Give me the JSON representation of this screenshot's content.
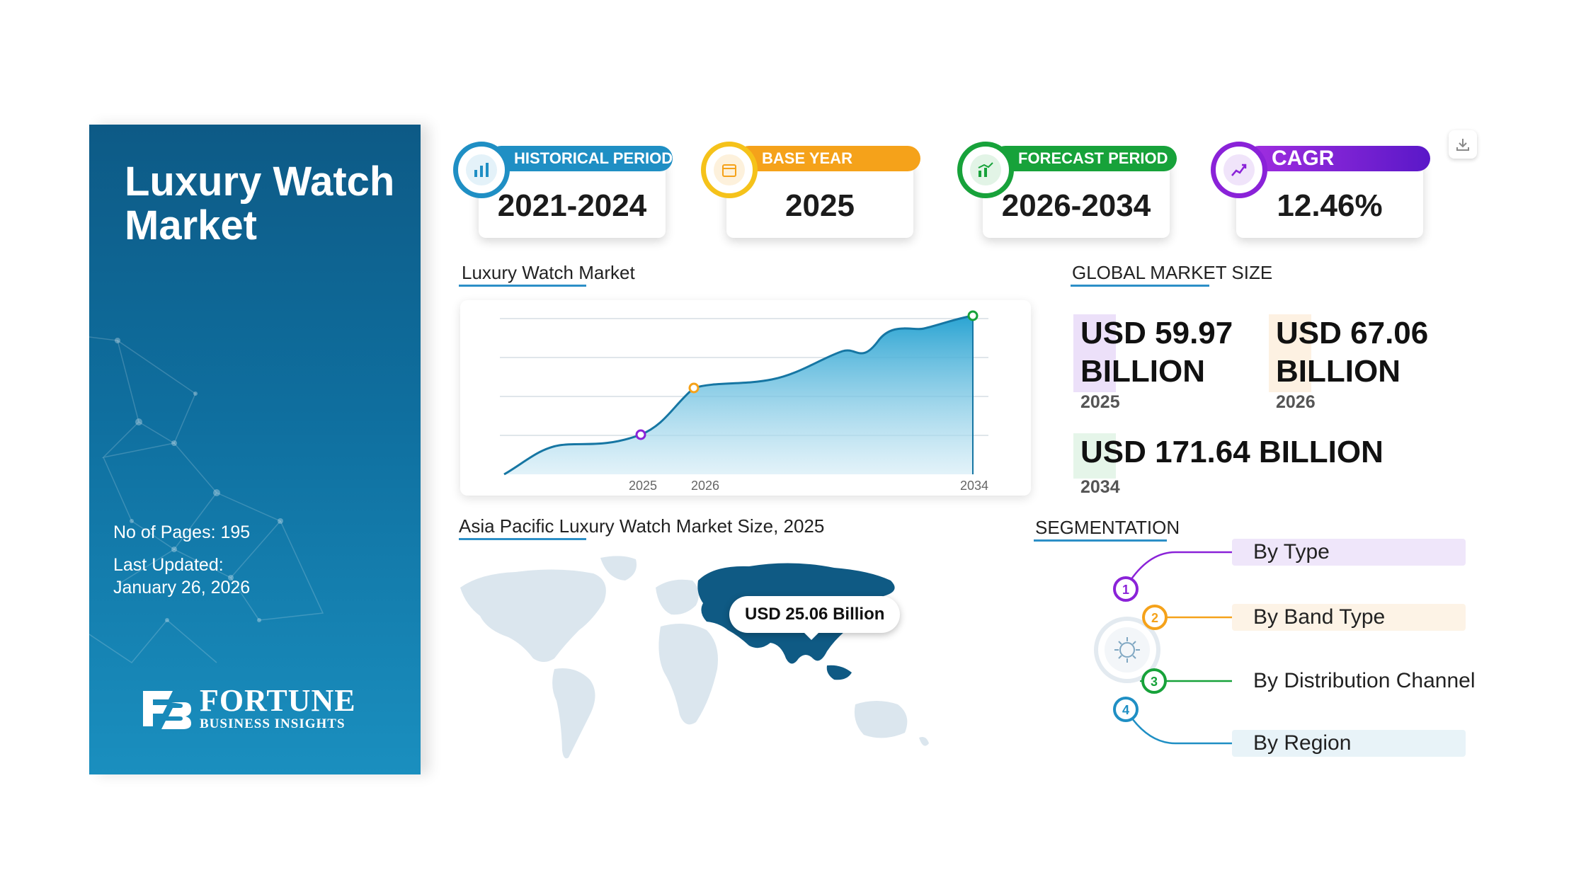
{
  "left_panel": {
    "title_line1": "Luxury Watch",
    "title_line2": "Market",
    "pages": "No of Pages: 195",
    "last_updated_label": "Last Updated:",
    "last_updated_date": "January 26, 2026",
    "brand_name": "FORTUNE",
    "brand_sub": "BUSINESS INSIGHTS"
  },
  "stats": [
    {
      "label": "HISTORICAL PERIOD",
      "value": "2021-2024",
      "color": "#1f8fc4",
      "icon": "bar-chart-icon"
    },
    {
      "label": "BASE YEAR",
      "value": "2025",
      "color": "#f5a21a",
      "icon": "calendar-icon"
    },
    {
      "label": "FORECAST PERIOD",
      "value": "2026-2034",
      "color": "#17a23a",
      "icon": "forecast-chart-icon"
    },
    {
      "label": "CAGR",
      "value": "12.46%",
      "color": "#8a22d8",
      "icon": "growth-chart-icon"
    }
  ],
  "chart_section": {
    "title": "Luxury Watch Market"
  },
  "chart_data": {
    "type": "area",
    "title": "Luxury Watch Market",
    "tick_labels": [
      "2025",
      "2026",
      "2034"
    ],
    "highlighted_points": [
      {
        "label": "2025",
        "color": "#8a22d8"
      },
      {
        "label": "2026",
        "color": "#f5a21a"
      },
      {
        "label": "2034",
        "color": "#17a23a"
      }
    ],
    "grid": true,
    "fill_color": "#1f9fd0"
  },
  "global_market": {
    "title": "GLOBAL MARKET SIZE",
    "items": [
      {
        "value_line1": "USD 59.97",
        "value_line2": "BILLION",
        "year": "2025",
        "tint": "#c9a7ee"
      },
      {
        "value_line1": "USD 67.06",
        "value_line2": "BILLION",
        "year": "2026",
        "tint": "#f8d7ab"
      },
      {
        "value_line1": "USD 171.64 BILLION",
        "value_line2": "",
        "year": "2034",
        "tint": "#b5e3bf"
      }
    ]
  },
  "map_section": {
    "title": "Asia Pacific Luxury Watch Market Size, 2025",
    "callout": "USD 25.06 Billion",
    "highlight_color": "#0f5a84",
    "base_color": "#dbe6ee"
  },
  "segmentation": {
    "title": "SEGMENTATION",
    "items": [
      {
        "num": "1",
        "label": "By Type",
        "color": "#8a22d8",
        "bg": "#efe6fa"
      },
      {
        "num": "2",
        "label": "By Band Type",
        "color": "#f5a21a",
        "bg": "#fdf3e6"
      },
      {
        "num": "3",
        "label": "By Distribution Channel",
        "color": "#17a23a",
        "bg": "#ffffff"
      },
      {
        "num": "4",
        "label": "By Region",
        "color": "#1f8fc4",
        "bg": "#e8f3f8"
      }
    ]
  }
}
